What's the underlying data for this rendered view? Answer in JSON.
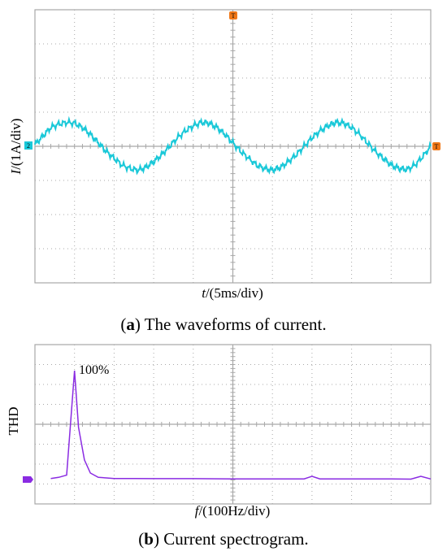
{
  "panel_a": {
    "caption_label": "a",
    "caption_text": "The waveforms of current.",
    "ylabel_var": "I",
    "ylabel_unit": "/(1A/div)",
    "xlabel_var": "t",
    "xlabel_unit": "/(5ms/div)",
    "ch_marker": "2",
    "trig_marker": "T"
  },
  "panel_b": {
    "caption_label": "b",
    "caption_text": "Current spectrogram.",
    "ylabel": "THD",
    "xlabel_var": "f",
    "xlabel_unit": "/(100Hz/div)",
    "peak_label": "100%"
  },
  "colors": {
    "waveform": "#19c8d8",
    "spectrum": "#8a2be2",
    "grid": "#a8a8a8",
    "trigger": "#f07818"
  },
  "chart_data": [
    {
      "type": "line",
      "title": "The waveforms of current.",
      "xlabel": "t/(5ms/div)",
      "ylabel": "I/(1A/div)",
      "xlim": [
        0,
        50
      ],
      "ylim": [
        -4,
        4
      ],
      "x_divisions": 10,
      "y_divisions": 8,
      "grid": true,
      "series": [
        {
          "frequency_hz": 50,
          "amplitude_div": 0.7,
          "x_ms": [
            0,
            1,
            2,
            3,
            4,
            5,
            6,
            7,
            8,
            9,
            10,
            11,
            12,
            13,
            14,
            15,
            16,
            17,
            18,
            19,
            20,
            21,
            22,
            23,
            24,
            25,
            26,
            27,
            28,
            29,
            30,
            31,
            32,
            33,
            34,
            35,
            36,
            37,
            38,
            39,
            40,
            41,
            42,
            43,
            44,
            45,
            46,
            47,
            48,
            49,
            50
          ],
          "y_div": [
            0.05,
            0.3,
            0.55,
            0.65,
            0.7,
            0.68,
            0.55,
            0.35,
            0.1,
            -0.15,
            -0.35,
            -0.55,
            -0.65,
            -0.7,
            -0.62,
            -0.45,
            -0.25,
            0.0,
            0.25,
            0.45,
            0.6,
            0.7,
            0.68,
            0.55,
            0.35,
            0.1,
            -0.15,
            -0.35,
            -0.55,
            -0.65,
            -0.7,
            -0.62,
            -0.45,
            -0.25,
            0.0,
            0.25,
            0.45,
            0.6,
            0.7,
            0.68,
            0.55,
            0.35,
            0.1,
            -0.15,
            -0.35,
            -0.55,
            -0.65,
            -0.68,
            -0.55,
            -0.3,
            0.0
          ]
        }
      ]
    },
    {
      "type": "line",
      "title": "Current spectrogram.",
      "xlabel": "f/(100Hz/div)",
      "ylabel": "THD",
      "xlim": [
        0,
        1000
      ],
      "ylim": [
        0,
        100
      ],
      "x_divisions": 10,
      "y_divisions": 8,
      "grid": true,
      "series": [
        {
          "x_hz": [
            40,
            60,
            80,
            100,
            110,
            125,
            140,
            160,
            180,
            200,
            250,
            300,
            400,
            500,
            600,
            680,
            700,
            720,
            800,
            900,
            950,
            975,
            1000
          ],
          "thd_pct": [
            1,
            2,
            4,
            100,
            48,
            18,
            6,
            2,
            1.5,
            1,
            1,
            0.8,
            0.8,
            0.6,
            0.5,
            0.6,
            3,
            0.6,
            0.5,
            0.5,
            0.4,
            3,
            0.5
          ]
        }
      ]
    }
  ]
}
